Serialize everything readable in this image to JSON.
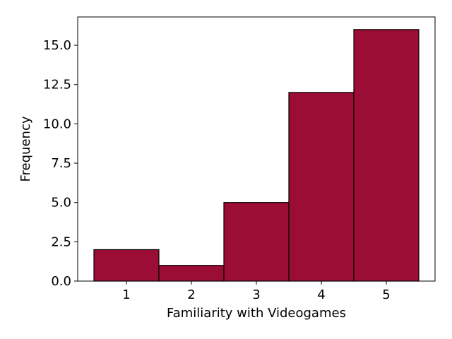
{
  "chart_data": {
    "type": "bar",
    "categories": [
      "1",
      "2",
      "3",
      "4",
      "5"
    ],
    "values": [
      2,
      1,
      5,
      12,
      16
    ],
    "title": "",
    "xlabel": "Familiarity with Videogames",
    "ylabel": "Frequency",
    "ylim": [
      0,
      16.8
    ],
    "yticks": [
      "0.0",
      "2.5",
      "5.0",
      "7.5",
      "10.0",
      "12.5",
      "15.0"
    ],
    "ytick_values": [
      0,
      2.5,
      5,
      7.5,
      10,
      12.5,
      15
    ],
    "grid": false,
    "legend": "none",
    "bar_color": "#9b0d35",
    "edge_color": "#000000"
  }
}
